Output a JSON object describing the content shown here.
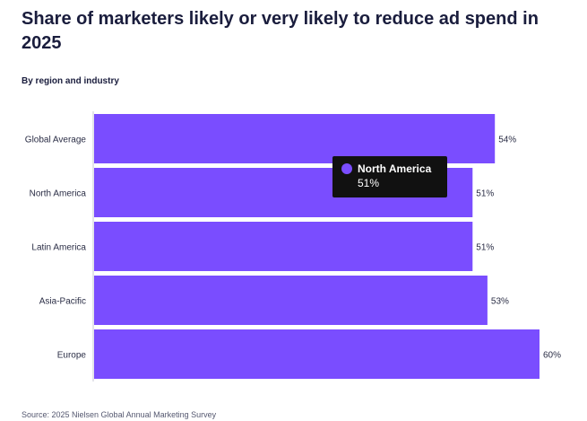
{
  "chart_data": {
    "type": "bar",
    "orientation": "horizontal",
    "title": "Share of marketers likely or very likely to reduce ad spend in 2025",
    "subtitle": "By region and industry",
    "categories": [
      "Global Average",
      "North America",
      "Latin America",
      "Asia-Pacific",
      "Europe"
    ],
    "values": [
      54,
      51,
      51,
      53,
      60
    ],
    "value_labels": [
      "54%",
      "51%",
      "51%",
      "53%",
      "60%"
    ],
    "unit": "%",
    "xlim": [
      0,
      60
    ],
    "grid": false,
    "bar_color": "#7a4dff",
    "tooltip": {
      "series_name": "North America",
      "value_label": "51%",
      "color": "#7a4dff"
    },
    "source": "Source: 2025 Nielsen Global Annual Marketing Survey"
  }
}
